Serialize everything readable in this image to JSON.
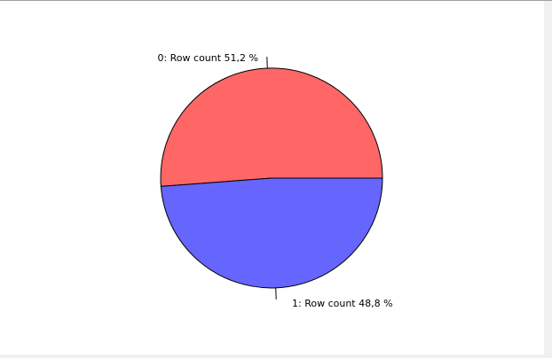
{
  "chart_data": {
    "type": "pie",
    "slices": [
      {
        "label": "0: Row count 51,2 %",
        "category": "0",
        "measure": "Row count",
        "value": 51.2,
        "color": "#ff6666"
      },
      {
        "label": "1: Row count 48,8 %",
        "category": "1",
        "measure": "Row count",
        "value": 48.8,
        "color": "#6666ff"
      }
    ],
    "legend": "none"
  }
}
